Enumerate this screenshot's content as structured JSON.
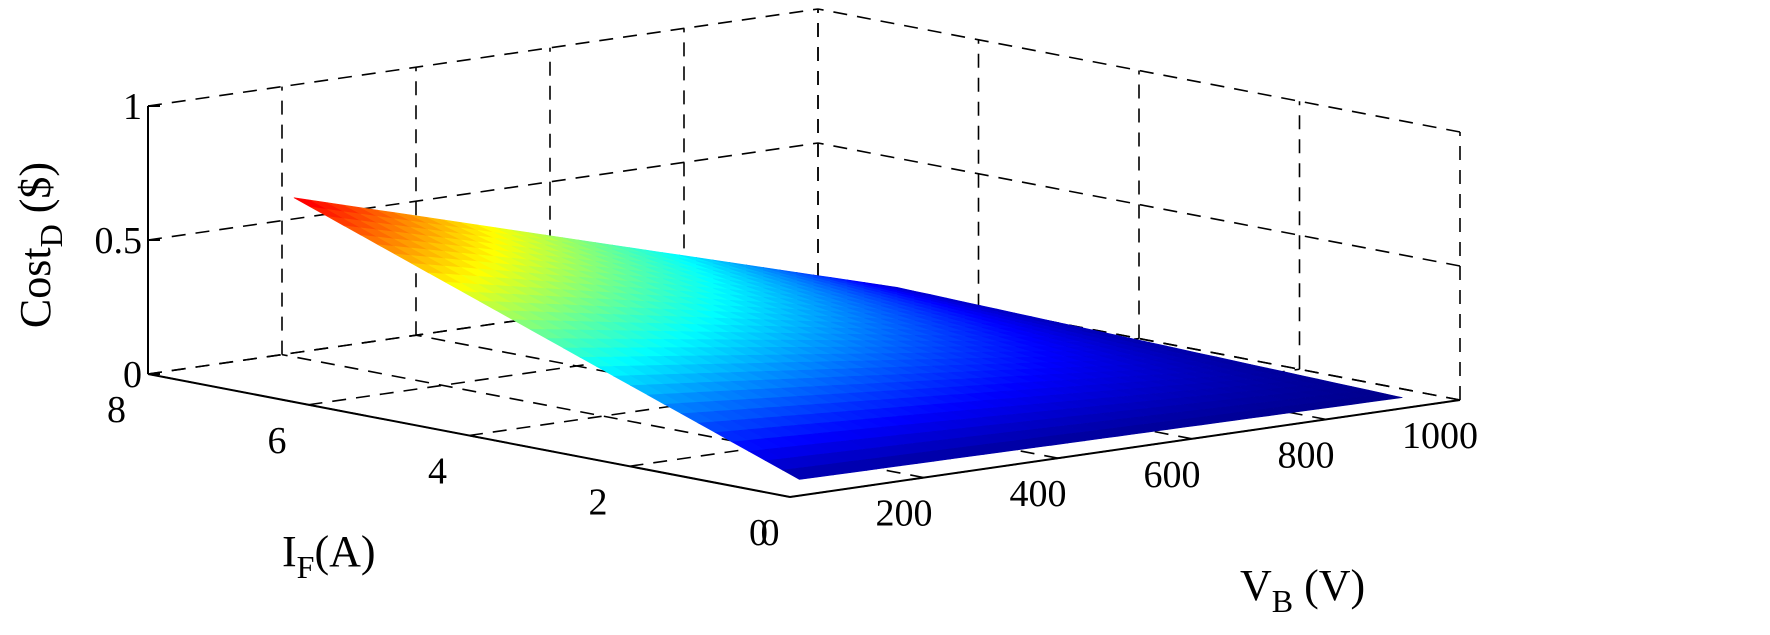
{
  "chart_data": {
    "type": "surface",
    "title": "",
    "xlabel": {
      "main": "V",
      "sub": "B",
      "unit": " (V)"
    },
    "ylabel": {
      "main": "I",
      "sub": "F",
      "unit": "(A)"
    },
    "zlabel": {
      "main": "Cost",
      "sub": "D",
      "unit": " ($)"
    },
    "xlim": [
      0,
      1000
    ],
    "ylim": [
      0,
      8
    ],
    "zlim": [
      0,
      1
    ],
    "xticks": [
      "0",
      "200",
      "400",
      "600",
      "800",
      "1000"
    ],
    "yticks": [
      "0",
      "2",
      "4",
      "6",
      "8"
    ],
    "zticks": [
      "0",
      "0.5",
      "1"
    ],
    "grid": true,
    "colormap": "jet",
    "surface": {
      "x_range": [
        50,
        950
      ],
      "y_range": [
        0.3,
        6.6
      ],
      "corner_values": {
        "x50_y0.3": 0.03,
        "x50_y6.6": 0.72,
        "x950_y0.3": 0.01,
        "x950_y6.6": 0.06
      }
    }
  }
}
